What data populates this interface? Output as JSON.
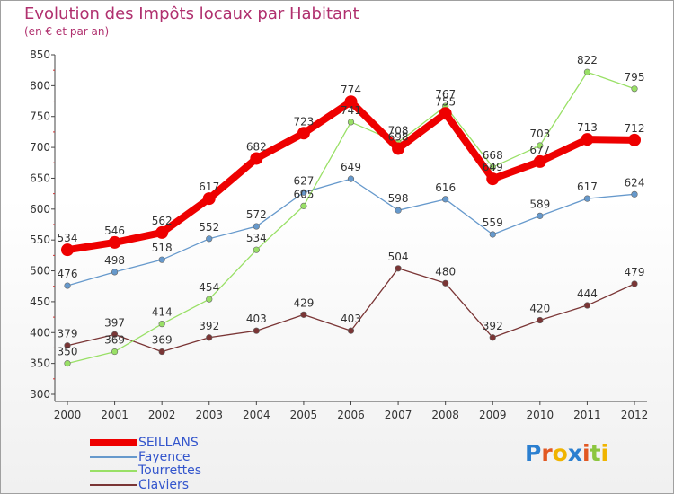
{
  "title": "Evolution des Impôts locaux par Habitant",
  "subtitle": "(en € et par an)",
  "brand": [
    "P",
    "r",
    "o",
    "x",
    "i",
    "t",
    "i"
  ],
  "chart_data": {
    "type": "line",
    "title": "Evolution des Impôts locaux par Habitant",
    "ylabel": "(en € et par an)",
    "xlabel": "",
    "x": [
      "2000",
      "2001",
      "2002",
      "2003",
      "2004",
      "2005",
      "2006",
      "2007",
      "2008",
      "2009",
      "2010",
      "2011",
      "2012"
    ],
    "ylim": [
      300,
      850
    ],
    "yticks": [
      300,
      350,
      400,
      450,
      500,
      550,
      600,
      650,
      700,
      750,
      800,
      850
    ],
    "grid": false,
    "legend": "bottom-left",
    "series": [
      {
        "name": "SEILLANS",
        "color": "#ee0000",
        "values": [
          534,
          546,
          562,
          617,
          682,
          723,
          774,
          698,
          755,
          649,
          677,
          713,
          712
        ]
      },
      {
        "name": "Fayence",
        "color": "#6699cc",
        "values": [
          476,
          498,
          518,
          552,
          572,
          627,
          649,
          598,
          616,
          559,
          589,
          617,
          624
        ]
      },
      {
        "name": "Tourrettes",
        "color": "#99e066",
        "values": [
          350,
          369,
          414,
          454,
          534,
          605,
          741,
          708,
          767,
          668,
          703,
          822,
          795
        ]
      },
      {
        "name": "Claviers",
        "color": "#7a3535",
        "values": [
          379,
          397,
          369,
          392,
          403,
          429,
          403,
          504,
          480,
          392,
          420,
          444,
          479
        ]
      }
    ]
  }
}
